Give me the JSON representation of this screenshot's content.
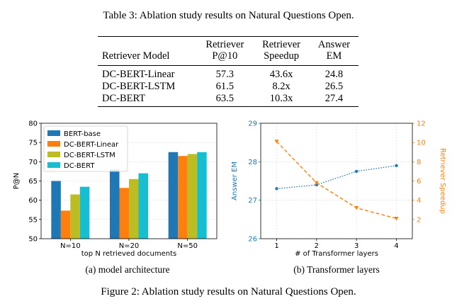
{
  "table": {
    "caption": "Table 3: Ablation study results on Natural Questions Open.",
    "headers": [
      {
        "line1": "Retriever Model",
        "line2": ""
      },
      {
        "line1": "Retriever",
        "line2": "P@10"
      },
      {
        "line1": "Retriever",
        "line2": "Speedup"
      },
      {
        "line1": "Answer",
        "line2": "EM"
      }
    ],
    "rows": [
      [
        "DC-BERT-Linear",
        "57.3",
        "43.6x",
        "24.8"
      ],
      [
        "DC-BERT-LSTM",
        "61.5",
        "8.2x",
        "26.5"
      ],
      [
        "DC-BERT",
        "63.5",
        "10.3x",
        "27.4"
      ]
    ]
  },
  "figure": {
    "caption": "Figure 2: Ablation study results on Natural Questions Open.",
    "subcaptions": [
      "(a) model architecture",
      "(b) Transformer layers"
    ]
  },
  "chart_data": [
    {
      "type": "bar",
      "categories": [
        "N=10",
        "N=20",
        "N=50"
      ],
      "series": [
        {
          "name": "BERT-base",
          "color": "#1f77b4",
          "values": [
            65.0,
            68.0,
            72.5
          ]
        },
        {
          "name": "DC-BERT-Linear",
          "color": "#ff7f0e",
          "values": [
            57.3,
            63.2,
            71.5
          ]
        },
        {
          "name": "DC-BERT-LSTM",
          "color": "#bcbd22",
          "values": [
            61.5,
            65.5,
            72.0
          ]
        },
        {
          "name": "DC-BERT",
          "color": "#17becf",
          "values": [
            63.5,
            67.0,
            72.5
          ]
        }
      ],
      "title": "",
      "xlabel": "top N retrieved documents",
      "ylabel": "P@N",
      "ylim": [
        50,
        80
      ],
      "yticks": [
        "50",
        "55",
        "60",
        "65",
        "70",
        "75",
        "80"
      ],
      "grid": true,
      "legend": "top-left"
    },
    {
      "type": "line",
      "x": [
        1,
        2,
        3,
        4
      ],
      "xticks": [
        "1",
        "2",
        "3",
        "4"
      ],
      "xlabel": "# of Transformer layers",
      "title": "",
      "series": [
        {
          "axis": "left",
          "label": "Answer EM",
          "color": "#1f77b4",
          "style": "dotted",
          "marker": "circle",
          "values": [
            27.3,
            27.4,
            27.75,
            27.9
          ]
        },
        {
          "axis": "right",
          "label": "Retriever Speedup",
          "color": "#ff7f0e",
          "style": "dashed",
          "marker": "triangle-down",
          "values": [
            10.1,
            5.8,
            3.2,
            2.1
          ]
        }
      ],
      "ylabel_left": "Answer EM",
      "ylim_left": [
        26,
        29
      ],
      "yticks_left": [
        "26",
        "27",
        "28",
        "29"
      ],
      "ylabel_right": "Retriever Speedup",
      "ylim_right": [
        0,
        12
      ],
      "yticks_right": [
        "2",
        "4",
        "6",
        "8",
        "10",
        "12"
      ],
      "grid": true
    }
  ]
}
